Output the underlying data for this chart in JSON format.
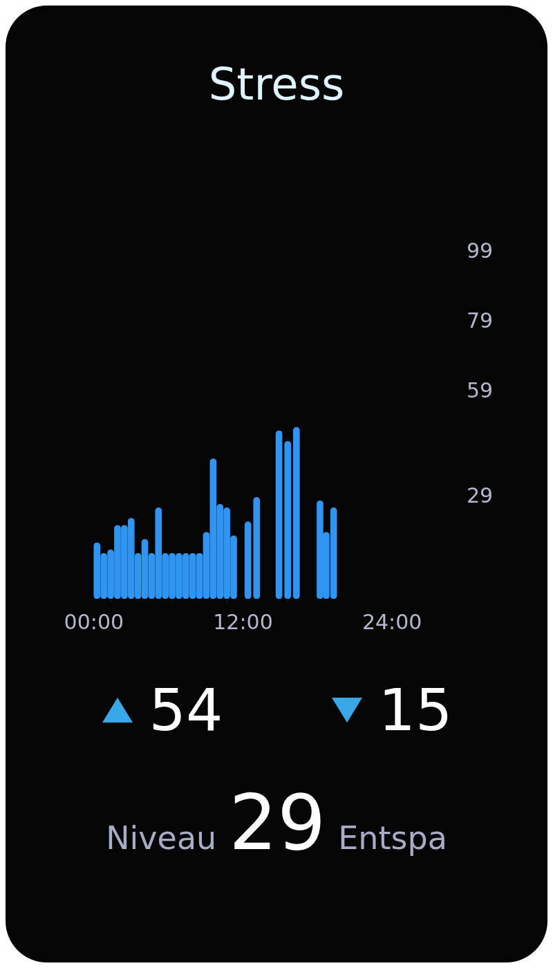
{
  "chart_data": {
    "type": "bar",
    "title": "Stress",
    "x": [
      0.25,
      0.8,
      1.35,
      1.9,
      2.45,
      3,
      3.55,
      4.1,
      4.65,
      5.2,
      5.75,
      6.3,
      6.85,
      7.4,
      7.95,
      8.5,
      9.05,
      9.6,
      10.15,
      10.7,
      11.25,
      12.4,
      13.1,
      14.9,
      15.6,
      16.3,
      18.2,
      18.7,
      19.3
    ],
    "values": [
      16,
      13,
      14,
      21,
      21,
      23,
      13,
      17,
      13,
      26,
      13,
      13,
      13,
      13,
      13,
      13,
      19,
      40,
      27,
      26,
      18,
      22,
      29,
      48,
      45,
      49,
      28,
      19,
      26
    ],
    "color": "#2f95f0",
    "xlim": [
      0,
      24
    ],
    "xticks": [
      {
        "value": 0,
        "label": "00:00"
      },
      {
        "value": 12,
        "label": "12:00"
      },
      {
        "value": 24,
        "label": "24:00"
      }
    ],
    "ylim": [
      0,
      99
    ],
    "yticks": [
      29,
      59,
      79,
      99
    ],
    "annotations": [
      "54",
      "15",
      "Niveau",
      "29",
      "Entspa"
    ]
  }
}
